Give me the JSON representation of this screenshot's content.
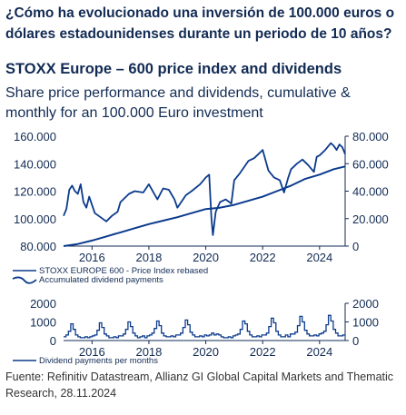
{
  "headline": "¿Cómo ha evolucionado una inversión de 100.000 euros o dólares estadounidenses durante un periodo de 10 años?",
  "source": "Fuente: Refinitiv Datastream, Allianz GI Global Capital Markets and Thematic Research, 28.11.2024",
  "colors": {
    "line": "#0b3a8c",
    "axis": "#122b54"
  },
  "chart_data": [
    {
      "type": "line",
      "title": "STOXX Europe – 600 price index and dividends",
      "subtitle": "Share price performance and dividends, cumulative & monthly for an 100.000 Euro investment",
      "xlabel": "",
      "ylabel": "",
      "xlim": [
        2015.0,
        2024.9
      ],
      "ylim": [
        80000,
        160000
      ],
      "y2lim": [
        0,
        80000
      ],
      "x_ticks": [
        "2016",
        "2018",
        "2020",
        "2022",
        "2024"
      ],
      "y_ticks": [
        "80.000",
        "100.000",
        "120.000",
        "140.000",
        "160.000"
      ],
      "y2_ticks": [
        "0",
        "20.000",
        "40.000",
        "60.000",
        "80.000"
      ],
      "legend_position": "bottom-left",
      "series": [
        {
          "name": "STOXX EUROPE 600 - Price Index rebased",
          "axis": "left",
          "x": [
            2015.0,
            2015.1,
            2015.2,
            2015.3,
            2015.4,
            2015.5,
            2015.6,
            2015.7,
            2015.8,
            2015.9,
            2016.1,
            2016.3,
            2016.5,
            2016.7,
            2016.9,
            2017.0,
            2017.3,
            2017.5,
            2017.8,
            2018.0,
            2018.3,
            2018.5,
            2018.7,
            2018.9,
            2019.0,
            2019.3,
            2019.5,
            2019.8,
            2020.0,
            2020.12,
            2020.2,
            2020.25,
            2020.35,
            2020.5,
            2020.7,
            2020.9,
            2021.0,
            2021.2,
            2021.5,
            2021.7,
            2021.9,
            2022.0,
            2022.2,
            2022.4,
            2022.6,
            2022.75,
            2022.9,
            2023.0,
            2023.2,
            2023.4,
            2023.6,
            2023.8,
            2023.9,
            2024.0,
            2024.2,
            2024.4,
            2024.5,
            2024.6,
            2024.7,
            2024.8,
            2024.9
          ],
          "values": [
            102000,
            107000,
            121000,
            124000,
            120000,
            118000,
            125000,
            112000,
            108000,
            116000,
            104000,
            101000,
            98000,
            102000,
            105000,
            112000,
            118000,
            120000,
            119000,
            125000,
            114000,
            122000,
            121000,
            114000,
            108000,
            117000,
            120000,
            125000,
            130000,
            132000,
            100000,
            88000,
            105000,
            112000,
            114000,
            111000,
            128000,
            133000,
            142000,
            144000,
            148000,
            150000,
            135000,
            130000,
            128000,
            119000,
            130000,
            136000,
            140000,
            143000,
            139000,
            134000,
            145000,
            146000,
            150000,
            155000,
            153000,
            150000,
            154000,
            152000,
            147000
          ]
        },
        {
          "name": "Accumulated dividend payments",
          "axis": "right",
          "x": [
            2015.0,
            2015.5,
            2016.0,
            2016.5,
            2017.0,
            2017.5,
            2018.0,
            2018.5,
            2019.0,
            2019.5,
            2020.0,
            2020.5,
            2021.0,
            2021.5,
            2022.0,
            2022.5,
            2023.0,
            2023.5,
            2024.0,
            2024.5,
            2024.9
          ],
          "values": [
            0,
            1500,
            4000,
            7000,
            10000,
            13000,
            16000,
            18500,
            21000,
            24000,
            27000,
            28000,
            30000,
            33000,
            36000,
            40000,
            44000,
            49000,
            52000,
            56000,
            58000
          ]
        }
      ]
    },
    {
      "type": "bar",
      "xlim": [
        2015.0,
        2024.9
      ],
      "ylim": [
        0,
        2000
      ],
      "x_ticks": [
        "2016",
        "2018",
        "2020",
        "2022",
        "2024"
      ],
      "y_ticks": [
        "0",
        "1000",
        "2000"
      ],
      "y2_ticks": [
        "0",
        "1000",
        "2000"
      ],
      "legend_position": "bottom-left",
      "series": [
        {
          "name": "Dividend payments per months",
          "values": [
            200,
            300,
            500,
            900,
            600,
            300,
            200,
            150,
            150,
            200,
            150,
            200,
            250,
            300,
            550,
            950,
            700,
            350,
            250,
            150,
            150,
            200,
            150,
            250,
            250,
            350,
            600,
            1000,
            750,
            400,
            250,
            150,
            200,
            250,
            150,
            250,
            300,
            400,
            650,
            1050,
            800,
            400,
            250,
            200,
            200,
            250,
            200,
            300,
            300,
            400,
            700,
            1100,
            850,
            450,
            300,
            200,
            200,
            250,
            200,
            300,
            250,
            300,
            400,
            300,
            350,
            300,
            200,
            150,
            150,
            200,
            150,
            250,
            300,
            350,
            600,
            1050,
            900,
            500,
            300,
            200,
            200,
            250,
            200,
            300,
            300,
            400,
            750,
            1200,
            950,
            500,
            300,
            200,
            200,
            300,
            200,
            350,
            350,
            450,
            800,
            1300,
            1000,
            550,
            350,
            250,
            250,
            300,
            250,
            350,
            400,
            500,
            850,
            1350,
            1050,
            600,
            400,
            250,
            250,
            300
          ]
        }
      ]
    }
  ]
}
